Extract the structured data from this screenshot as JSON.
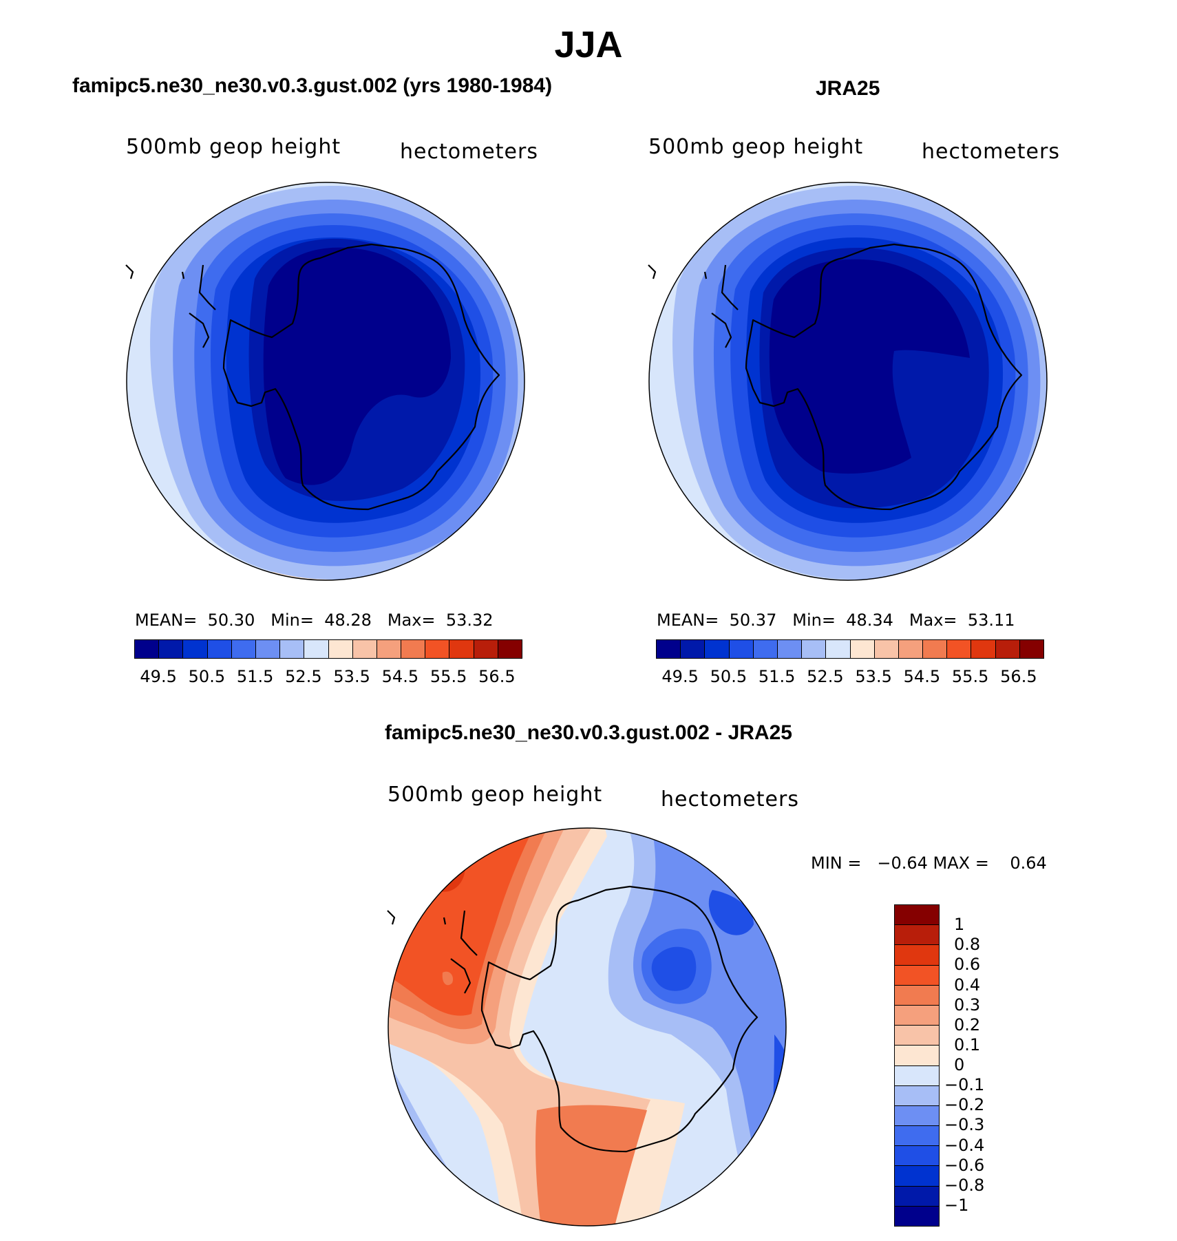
{
  "title": "JJA",
  "panels": [
    {
      "id": "model",
      "title": "famipc5.ne30_ne30.v0.3.gust.002 (yrs 1980-1984)",
      "variable": "500mb  geop  height",
      "units": "hectometers",
      "stats": {
        "mean_label": "MEAN=",
        "mean": "50.30",
        "min_label": "Min=",
        "min": "48.28",
        "max_label": "Max=",
        "max": "53.32"
      },
      "field_levels": [
        49.0,
        49.5,
        50.0,
        50.5,
        51.0,
        51.5,
        52.0,
        52.5,
        53.0
      ],
      "outer_partial_color": "#fde6d2"
    },
    {
      "id": "obs",
      "title": "JRA25",
      "variable": "500mb  geop  height",
      "units": "hectometers",
      "stats": {
        "mean_label": "MEAN=",
        "mean": "50.37",
        "min_label": "Min=",
        "min": "48.34",
        "max_label": "Max=",
        "max": "53.11"
      },
      "field_levels": [
        49.0,
        49.5,
        50.0,
        50.5,
        51.0,
        51.5,
        52.0,
        52.5
      ]
    }
  ],
  "shared_colorbar": {
    "colors": [
      "#00008c",
      "#0019aa",
      "#0033d0",
      "#1f4fe6",
      "#3f6cef",
      "#6d8ff3",
      "#a7bef6",
      "#d8e6fb",
      "#fde6d2",
      "#f8c3a8",
      "#f5a07d",
      "#f17b50",
      "#f25325",
      "#e0370f",
      "#b81e0a",
      "#850000"
    ],
    "tick_labels": [
      "49.5",
      "50.5",
      "51.5",
      "52.5",
      "53.5",
      "54.5",
      "55.5",
      "56.5"
    ]
  },
  "difference": {
    "title": "famipc5.ne30_ne30.v0.3.gust.002 - JRA25",
    "variable": "500mb  geop  height",
    "units": "hectometers",
    "minmax_text": "MIN =   −0.64 MAX =    0.64",
    "colorbar": {
      "colors_top_to_bottom": [
        "#850000",
        "#b81e0a",
        "#e0370f",
        "#f25325",
        "#f17b50",
        "#f5a07d",
        "#f8c3a8",
        "#fde6d2",
        "#d8e6fb",
        "#a7bef6",
        "#6d8ff3",
        "#3f6cef",
        "#1f4fe6",
        "#0033d0",
        "#0019aa",
        "#00008c"
      ],
      "tick_labels": [
        "1",
        "0.8",
        "0.6",
        "0.4",
        "0.3",
        "0.2",
        "0.1",
        "0",
        "−0.1",
        "−0.2",
        "−0.3",
        "−0.4",
        "−0.6",
        "−0.8",
        "−1"
      ]
    }
  }
}
